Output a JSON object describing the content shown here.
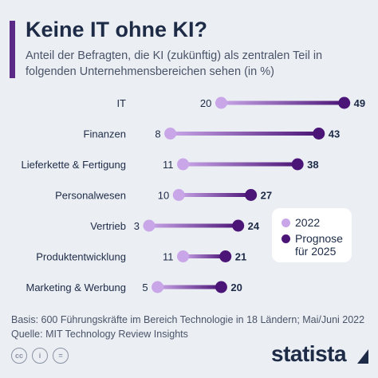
{
  "header": {
    "title": "Keine IT ohne KI?",
    "subtitle": "Anteil der Befragten, die KI (zukünftig) als zentralen Teil in folgenden Unternehmensbereichen sehen (in %)"
  },
  "chart_data": {
    "type": "dumbbell",
    "categories": [
      "IT",
      "Finanzen",
      "Lieferkette & Fertigung",
      "Personalwesen",
      "Vertrieb",
      "Produktentwicklung",
      "Marketing & Werbung"
    ],
    "series": [
      {
        "name": "2022",
        "values": [
          20,
          8,
          11,
          10,
          3,
          11,
          5
        ],
        "color": "#c9a6e8"
      },
      {
        "name": "Prognose für 2025",
        "values": [
          49,
          43,
          38,
          27,
          24,
          21,
          20
        ],
        "color": "#4b1577"
      }
    ],
    "xlim": [
      0,
      55
    ],
    "grid": false,
    "legend_position": "right"
  },
  "legend": {
    "item_2022": "2022",
    "item_2025_line1": "Prognose",
    "item_2025_line2": "für 2025"
  },
  "footer": {
    "basis": "Basis: 600 Führungskräfte im Bereich Technologie in 18 Ländern; Mai/Juni 2022",
    "source": "Quelle: MIT Technology Review Insights",
    "license_icons": [
      "cc",
      "i",
      "="
    ],
    "brand": "statista"
  },
  "colors": {
    "accent": "#5b2a86",
    "dot_2022": "#c9a6e8",
    "dot_2025": "#4b1577",
    "text": "#1d2b47",
    "background": "#ebeef3"
  }
}
